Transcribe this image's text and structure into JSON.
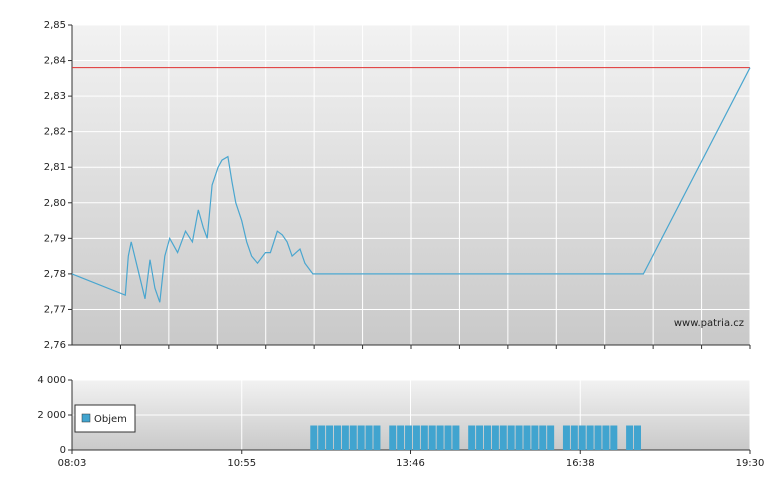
{
  "chart_data": [
    {
      "type": "line",
      "watermark": "www.patria.cz",
      "x": [
        483,
        537,
        540,
        543,
        550,
        557,
        562,
        567,
        572,
        577,
        582,
        590,
        598,
        605,
        611,
        616,
        620,
        625,
        631,
        635,
        641,
        645,
        649,
        655,
        660,
        665,
        671,
        679,
        684,
        691,
        696,
        701,
        706,
        714,
        719,
        727,
        1062,
        1170
      ],
      "series": [
        {
          "color": "#4aa6cf",
          "values": [
            2.78,
            2.774,
            2.785,
            2.789,
            2.781,
            2.773,
            2.784,
            2.776,
            2.772,
            2.785,
            2.79,
            2.786,
            2.792,
            2.789,
            2.798,
            2.793,
            2.79,
            2.805,
            2.81,
            2.812,
            2.813,
            2.806,
            2.8,
            2.795,
            2.789,
            2.785,
            2.783,
            2.786,
            2.786,
            2.792,
            2.791,
            2.789,
            2.785,
            2.787,
            2.783,
            2.78,
            2.78,
            2.838
          ]
        }
      ],
      "reference_line": 2.838,
      "reference_color": "#e03030",
      "xlim": [
        483,
        1170
      ],
      "ylim": [
        2.76,
        2.85
      ],
      "yticks": [
        {
          "value": 2.76,
          "label": "2,76"
        },
        {
          "value": 2.77,
          "label": "2,77"
        },
        {
          "value": 2.78,
          "label": "2,78"
        },
        {
          "value": 2.79,
          "label": "2,79"
        },
        {
          "value": 2.8,
          "label": "2,80"
        },
        {
          "value": 2.81,
          "label": "2,81"
        },
        {
          "value": 2.82,
          "label": "2,82"
        },
        {
          "value": 2.83,
          "label": "2,83"
        },
        {
          "value": 2.84,
          "label": "2,84"
        },
        {
          "value": 2.85,
          "label": "2,85"
        }
      ],
      "grid": true
    },
    {
      "type": "bar",
      "x": [
        728,
        736,
        744,
        752,
        760,
        768,
        776,
        784,
        792,
        808,
        816,
        824,
        832,
        840,
        848,
        856,
        864,
        872,
        888,
        896,
        904,
        912,
        920,
        928,
        936,
        944,
        952,
        960,
        968,
        984,
        992,
        1000,
        1008,
        1016,
        1024,
        1032,
        1048,
        1056
      ],
      "series": [
        {
          "name": "Objem",
          "color": "#41a4cf",
          "values": [
            1400,
            1400,
            1400,
            1400,
            1400,
            1400,
            1400,
            1400,
            1400,
            1400,
            1400,
            1400,
            1400,
            1400,
            1400,
            1400,
            1400,
            1400,
            1400,
            1400,
            1400,
            1400,
            1400,
            1400,
            1400,
            1400,
            1400,
            1400,
            1400,
            1400,
            1400,
            1400,
            1400,
            1400,
            1400,
            1400,
            1400,
            1400
          ]
        }
      ],
      "xlim": [
        483,
        1170
      ],
      "xticks": [
        {
          "value": 483,
          "label": "08:03"
        },
        {
          "value": 655,
          "label": "10:55"
        },
        {
          "value": 826,
          "label": "13:46"
        },
        {
          "value": 998,
          "label": "16:38"
        },
        {
          "value": 1170,
          "label": "19:30"
        }
      ],
      "ylim": [
        0,
        4000
      ],
      "yticks": [
        0,
        {
          "value": 2000,
          "label": "2 000"
        },
        {
          "value": 4000,
          "label": "4 000"
        }
      ],
      "grid": true
    }
  ]
}
